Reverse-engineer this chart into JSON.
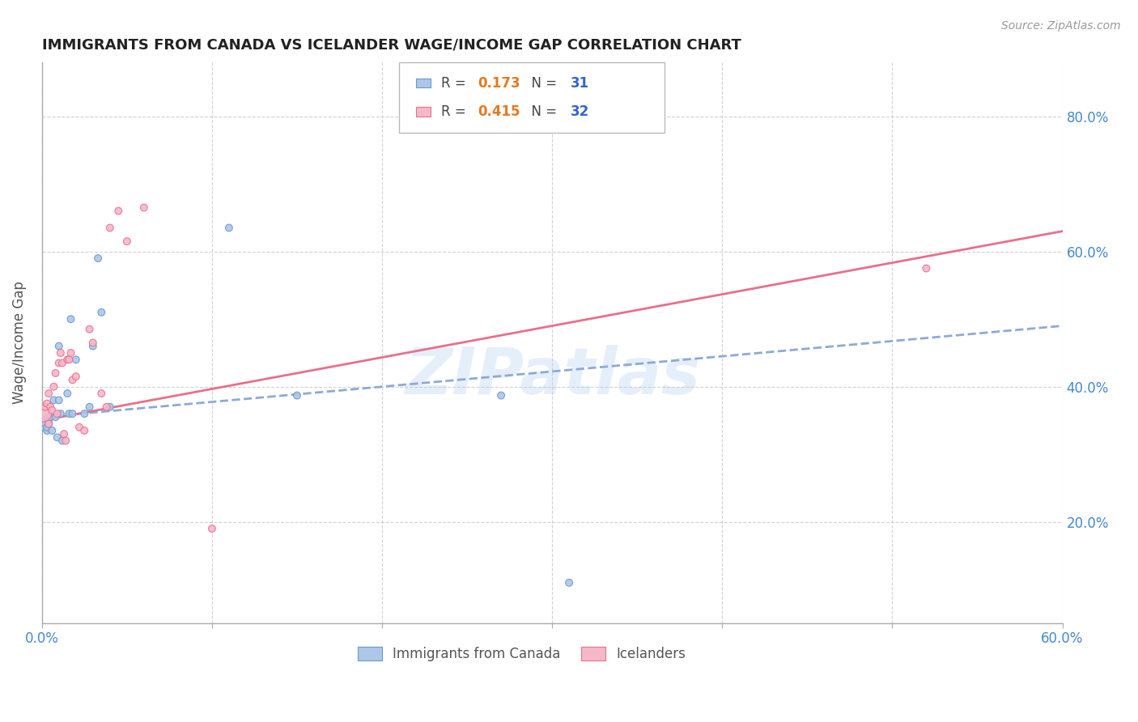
{
  "title": "IMMIGRANTS FROM CANADA VS ICELANDER WAGE/INCOME GAP CORRELATION CHART",
  "source": "Source: ZipAtlas.com",
  "ylabel": "Wage/Income Gap",
  "xlim": [
    0.0,
    0.6
  ],
  "ylim": [
    0.05,
    0.88
  ],
  "xticks": [
    0.0,
    0.1,
    0.2,
    0.3,
    0.4,
    0.5,
    0.6
  ],
  "xtick_labels": [
    "0.0%",
    "",
    "",
    "",
    "",
    "",
    "60.0%"
  ],
  "yticks_right": [
    0.2,
    0.4,
    0.6,
    0.8
  ],
  "ytick_labels_right": [
    "20.0%",
    "40.0%",
    "60.0%",
    "80.0%"
  ],
  "canada_R": 0.173,
  "canada_N": 31,
  "iceland_R": 0.415,
  "iceland_N": 32,
  "legend_label_canada": "Immigrants from Canada",
  "legend_label_iceland": "Icelanders",
  "canada_color": "#aec6e8",
  "iceland_color": "#f4b8c8",
  "canada_edge_color": "#6699cc",
  "iceland_edge_color": "#e87090",
  "canada_line_color": "#8eaad4",
  "iceland_line_color": "#e8708a",
  "grid_color": "#cccccc",
  "axis_label_color": "#4488cc",
  "canada_x": [
    0.001,
    0.002,
    0.003,
    0.003,
    0.004,
    0.004,
    0.004,
    0.005,
    0.006,
    0.007,
    0.008,
    0.009,
    0.01,
    0.01,
    0.011,
    0.012,
    0.015,
    0.016,
    0.017,
    0.018,
    0.02,
    0.025,
    0.028,
    0.03,
    0.033,
    0.035,
    0.04,
    0.11,
    0.15,
    0.27,
    0.31
  ],
  "canada_y": [
    0.34,
    0.345,
    0.335,
    0.34,
    0.345,
    0.35,
    0.355,
    0.355,
    0.335,
    0.38,
    0.355,
    0.325,
    0.38,
    0.46,
    0.36,
    0.32,
    0.39,
    0.36,
    0.5,
    0.36,
    0.44,
    0.36,
    0.37,
    0.46,
    0.59,
    0.51,
    0.37,
    0.635,
    0.387,
    0.387,
    0.11
  ],
  "canada_size": [
    40,
    40,
    40,
    40,
    40,
    40,
    40,
    40,
    40,
    40,
    40,
    40,
    40,
    40,
    40,
    40,
    40,
    40,
    40,
    40,
    40,
    40,
    40,
    40,
    40,
    40,
    40,
    40,
    40,
    40,
    40
  ],
  "iceland_x": [
    0.001,
    0.002,
    0.003,
    0.004,
    0.004,
    0.005,
    0.006,
    0.007,
    0.008,
    0.009,
    0.01,
    0.011,
    0.012,
    0.013,
    0.014,
    0.015,
    0.016,
    0.017,
    0.018,
    0.02,
    0.022,
    0.025,
    0.028,
    0.03,
    0.035,
    0.038,
    0.04,
    0.045,
    0.05,
    0.06,
    0.1,
    0.52
  ],
  "iceland_y": [
    0.36,
    0.37,
    0.375,
    0.39,
    0.345,
    0.37,
    0.365,
    0.4,
    0.42,
    0.36,
    0.435,
    0.45,
    0.435,
    0.33,
    0.32,
    0.44,
    0.44,
    0.45,
    0.41,
    0.415,
    0.34,
    0.335,
    0.485,
    0.465,
    0.39,
    0.37,
    0.635,
    0.66,
    0.615,
    0.665,
    0.19,
    0.575
  ],
  "iceland_size": [
    200,
    40,
    40,
    40,
    40,
    40,
    40,
    40,
    40,
    40,
    40,
    40,
    40,
    40,
    40,
    40,
    40,
    40,
    40,
    40,
    40,
    40,
    40,
    40,
    40,
    40,
    40,
    40,
    40,
    40,
    40,
    40
  ],
  "canada_trend_x": [
    0.0,
    0.6
  ],
  "canada_trend_y": [
    0.355,
    0.49
  ],
  "iceland_trend_x": [
    0.0,
    0.6
  ],
  "iceland_trend_y": [
    0.35,
    0.63
  ],
  "watermark": "ZIPatlas",
  "background_color": "#ffffff",
  "R_color": "#e87820",
  "N_color": "#3366cc"
}
